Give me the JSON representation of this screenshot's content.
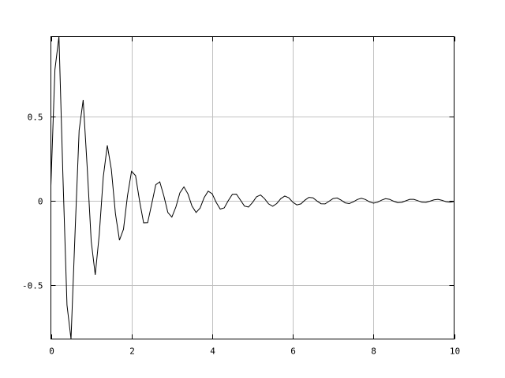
{
  "chart_data": {
    "type": "line",
    "title": "",
    "xlabel": "",
    "ylabel": "",
    "xlim": [
      0,
      10
    ],
    "ylim": [
      -0.822,
      0.977
    ],
    "grid": true,
    "legend": "none",
    "x_ticks": [
      "0",
      "2",
      "4",
      "6",
      "8",
      "10"
    ],
    "x_tick_values": [
      0,
      2,
      4,
      6,
      8,
      10
    ],
    "y_ticks": [
      "-0.5",
      "0",
      "0.5"
    ],
    "y_tick_values": [
      -0.5,
      0,
      0.5
    ],
    "colors": {
      "line": "#000000",
      "grid": "#c0c0c0",
      "frame": "#000000"
    },
    "series": [
      {
        "x_start": 0,
        "x_step": 0.1,
        "values": [
          0.09,
          0.78,
          0.977,
          0.14,
          -0.62,
          -0.822,
          -0.18,
          0.42,
          0.6,
          0.2,
          -0.24,
          -0.44,
          -0.2,
          0.143,
          0.33,
          0.187,
          -0.076,
          -0.234,
          -0.169,
          0.031,
          0.176,
          0.15,
          -0.001,
          -0.131,
          -0.13,
          -0.018,
          0.096,
          0.113,
          0.03,
          -0.069,
          -0.097,
          -0.037,
          0.048,
          0.083,
          0.041,
          -0.031,
          -0.069,
          -0.043,
          0.019,
          0.058,
          0.042,
          -0.009,
          -0.049,
          -0.042,
          0.001,
          0.039,
          0.04,
          0.005,
          -0.031,
          -0.037,
          -0.01,
          0.024,
          0.035,
          0.013,
          -0.018,
          -0.032,
          -0.016,
          0.013,
          0.029,
          0.018,
          -0.008,
          -0.024,
          -0.018,
          0.004,
          0.021,
          0.018,
          -0.001,
          -0.017,
          -0.018,
          -0.002,
          0.014,
          0.017,
          0.004,
          -0.012,
          -0.016,
          -0.006,
          0.008,
          0.015,
          0.008,
          -0.006,
          -0.014,
          -0.008,
          0.004,
          0.013,
          0.009,
          -0.002,
          -0.011,
          -0.009,
          0.0,
          0.009,
          0.009,
          0.001,
          -0.008,
          -0.009,
          -0.002,
          0.006,
          0.009,
          0.003,
          -0.005,
          -0.008,
          -0.004
        ]
      }
    ]
  }
}
